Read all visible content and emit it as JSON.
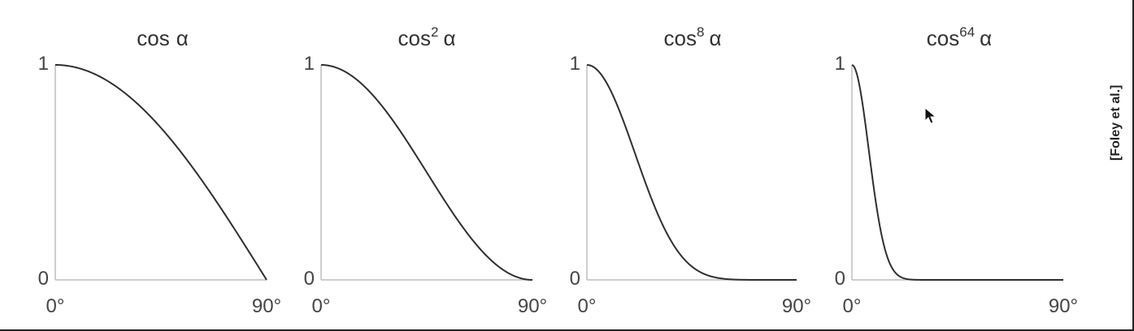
{
  "chart_data": [
    {
      "type": "line",
      "title_base": "cos",
      "title_exponent": "",
      "title_var": "α",
      "exponent": 1,
      "xlim": [
        0,
        90
      ],
      "ylim": [
        0,
        1
      ],
      "x_tick_labels": [
        "0°",
        "90°"
      ],
      "y_tick_labels": [
        "0",
        "1"
      ],
      "series": [
        {
          "values": [
            [
              0,
              1.0
            ],
            [
              15,
              0.966
            ],
            [
              30,
              0.866
            ],
            [
              45,
              0.707
            ],
            [
              60,
              0.5
            ],
            [
              75,
              0.259
            ],
            [
              90,
              0.0
            ]
          ]
        }
      ]
    },
    {
      "type": "line",
      "title_base": "cos",
      "title_exponent": "2",
      "title_var": "α",
      "exponent": 2,
      "xlim": [
        0,
        90
      ],
      "ylim": [
        0,
        1
      ],
      "x_tick_labels": [
        "0°",
        "90°"
      ],
      "y_tick_labels": [
        "0",
        "1"
      ],
      "series": [
        {
          "values": [
            [
              0,
              1.0
            ],
            [
              15,
              0.933
            ],
            [
              30,
              0.75
            ],
            [
              45,
              0.5
            ],
            [
              60,
              0.25
            ],
            [
              75,
              0.067
            ],
            [
              90,
              0.0
            ]
          ]
        }
      ]
    },
    {
      "type": "line",
      "title_base": "cos",
      "title_exponent": "8",
      "title_var": "α",
      "exponent": 8,
      "xlim": [
        0,
        90
      ],
      "ylim": [
        0,
        1
      ],
      "x_tick_labels": [
        "0°",
        "90°"
      ],
      "y_tick_labels": [
        "0",
        "1"
      ],
      "series": [
        {
          "values": [
            [
              0,
              1.0
            ],
            [
              15,
              0.758
            ],
            [
              30,
              0.316
            ],
            [
              45,
              0.063
            ],
            [
              60,
              0.004
            ],
            [
              75,
              0.0
            ],
            [
              90,
              0.0
            ]
          ]
        }
      ]
    },
    {
      "type": "line",
      "title_base": "cos",
      "title_exponent": "64",
      "title_var": "α",
      "exponent": 64,
      "xlim": [
        0,
        90
      ],
      "ylim": [
        0,
        1
      ],
      "x_tick_labels": [
        "0°",
        "90°"
      ],
      "y_tick_labels": [
        "0",
        "1"
      ],
      "series": [
        {
          "values": [
            [
              0,
              1.0
            ],
            [
              5,
              0.784
            ],
            [
              10,
              0.378
            ],
            [
              15,
              0.109
            ],
            [
              20,
              0.019
            ],
            [
              30,
              0.0
            ],
            [
              90,
              0.0
            ]
          ]
        }
      ]
    }
  ],
  "credit": "[Foley et al.]",
  "colors": {
    "curve": "#2f2f2f",
    "axis": "#bdbdbd",
    "text": "#333333"
  },
  "icons": {
    "cursor": "mouse-pointer-icon"
  }
}
